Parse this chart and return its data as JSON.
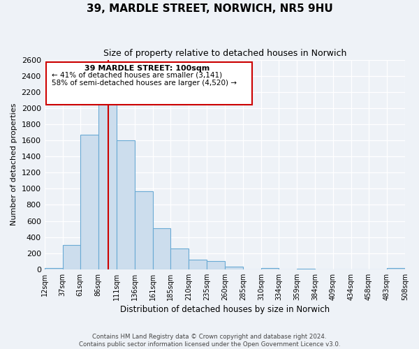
{
  "title": "39, MARDLE STREET, NORWICH, NR5 9HU",
  "subtitle": "Size of property relative to detached houses in Norwich",
  "xlabel": "Distribution of detached houses by size in Norwich",
  "ylabel": "Number of detached properties",
  "bar_color": "#ccdded",
  "bar_edge_color": "#6aaad4",
  "annotation_box_color": "#ffffff",
  "annotation_box_edge": "#cc0000",
  "vline_color": "#cc0000",
  "bins": [
    12,
    37,
    61,
    86,
    111,
    136,
    161,
    185,
    210,
    235,
    260,
    285,
    310,
    334,
    359,
    384,
    409,
    434,
    458,
    483,
    508
  ],
  "counts": [
    20,
    300,
    1670,
    2140,
    1600,
    970,
    505,
    255,
    120,
    100,
    30,
    0,
    20,
    0,
    5,
    0,
    0,
    0,
    0,
    20
  ],
  "property_size": 100,
  "annotation_title": "39 MARDLE STREET: 100sqm",
  "annotation_line1": "← 41% of detached houses are smaller (3,141)",
  "annotation_line2": "58% of semi-detached houses are larger (4,520) →",
  "ylim": [
    0,
    2600
  ],
  "yticks": [
    0,
    200,
    400,
    600,
    800,
    1000,
    1200,
    1400,
    1600,
    1800,
    2000,
    2200,
    2400,
    2600
  ],
  "footer1": "Contains HM Land Registry data © Crown copyright and database right 2024.",
  "footer2": "Contains public sector information licensed under the Open Government Licence v3.0.",
  "background_color": "#eef2f7"
}
